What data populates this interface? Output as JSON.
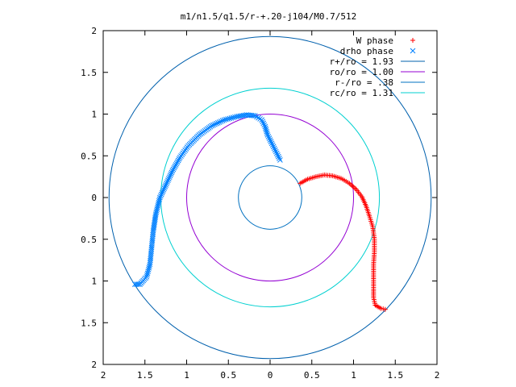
{
  "chart_data": {
    "type": "scatter",
    "title": "m1/n1.5/q1.5/r-+.20-j104/M0.7/512",
    "xlabel": "",
    "ylabel": "",
    "xlim": [
      -2,
      2
    ],
    "ylim": [
      -2,
      2
    ],
    "x_tick_labels": [
      "2",
      "1.5",
      "1",
      "0.5",
      "0",
      "0.5",
      "1",
      "1.5",
      "2"
    ],
    "y_tick_labels": [
      "2",
      "1.5",
      "1",
      "0.5",
      "0",
      "0.5",
      "1",
      "1.5",
      "2"
    ],
    "grid": false,
    "legend_position": "top-right",
    "series": [
      {
        "name": "W phase",
        "marker": "+",
        "color": "#ff0000",
        "points": [
          [
            0.36,
            0.17
          ],
          [
            0.45,
            0.22
          ],
          [
            0.55,
            0.25
          ],
          [
            0.65,
            0.27
          ],
          [
            0.75,
            0.26
          ],
          [
            0.85,
            0.23
          ],
          [
            0.95,
            0.17
          ],
          [
            1.03,
            0.1
          ],
          [
            1.1,
            0.01
          ],
          [
            1.15,
            -0.1
          ],
          [
            1.19,
            -0.22
          ],
          [
            1.23,
            -0.35
          ],
          [
            1.25,
            -0.5
          ],
          [
            1.25,
            -0.65
          ],
          [
            1.24,
            -0.8
          ],
          [
            1.24,
            -0.95
          ],
          [
            1.24,
            -1.1
          ],
          [
            1.24,
            -1.2
          ],
          [
            1.26,
            -1.29
          ],
          [
            1.33,
            -1.33
          ],
          [
            1.38,
            -1.34
          ]
        ]
      },
      {
        "name": "drho phase",
        "marker": "x",
        "color": "#0080ff",
        "points": [
          [
            0.12,
            0.45
          ],
          [
            0.07,
            0.55
          ],
          [
            0.02,
            0.65
          ],
          [
            -0.03,
            0.75
          ],
          [
            -0.06,
            0.85
          ],
          [
            -0.1,
            0.93
          ],
          [
            -0.18,
            0.98
          ],
          [
            -0.28,
            0.99
          ],
          [
            -0.4,
            0.97
          ],
          [
            -0.55,
            0.93
          ],
          [
            -0.7,
            0.86
          ],
          [
            -0.85,
            0.75
          ],
          [
            -0.98,
            0.62
          ],
          [
            -1.08,
            0.48
          ],
          [
            -1.17,
            0.32
          ],
          [
            -1.25,
            0.15
          ],
          [
            -1.32,
            0.0
          ],
          [
            -1.37,
            -0.2
          ],
          [
            -1.4,
            -0.4
          ],
          [
            -1.42,
            -0.6
          ],
          [
            -1.44,
            -0.8
          ],
          [
            -1.48,
            -0.95
          ],
          [
            -1.56,
            -1.04
          ],
          [
            -1.62,
            -1.04
          ]
        ]
      }
    ],
    "circles": [
      {
        "name": "r+/ro = 1.93",
        "radius": 1.93,
        "color": "#0060ad"
      },
      {
        "name": "ro/ro = 1.00",
        "radius": 1.0,
        "color": "#9400d3"
      },
      {
        "name": "r-/ro = .38",
        "radius": 0.38,
        "color": "#0070c0"
      },
      {
        "name": "rc/ro = 1.31",
        "radius": 1.31,
        "color": "#00d0d0"
      }
    ]
  }
}
